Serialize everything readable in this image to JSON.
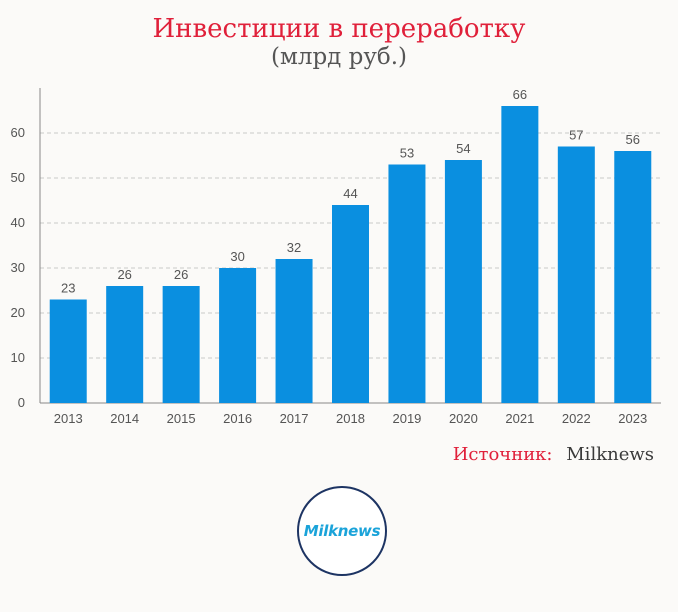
{
  "header": {
    "title": "Инвестиции в переработку",
    "subtitle": "(млрд руб.)"
  },
  "source": {
    "label": "Источник:",
    "value": "Milknews"
  },
  "logo": {
    "text": "Milknews",
    "accent_color": "#1aa3d9",
    "border_color": "#1d3463"
  },
  "chart_data": {
    "type": "bar",
    "title": "Инвестиции в переработку",
    "subtitle": "(млрд руб.)",
    "xlabel": "",
    "ylabel": "",
    "categories": [
      "2013",
      "2014",
      "2015",
      "2016",
      "2017",
      "2018",
      "2019",
      "2020",
      "2021",
      "2022",
      "2023"
    ],
    "values": [
      23,
      26,
      26,
      30,
      32,
      44,
      53,
      54,
      66,
      57,
      56
    ],
    "ylim": [
      0,
      70
    ],
    "yticks": [
      0,
      10,
      20,
      30,
      40,
      50,
      60
    ],
    "grid": true,
    "legend": "none",
    "bar_color": "#0a8fe0",
    "data_labels": true
  }
}
